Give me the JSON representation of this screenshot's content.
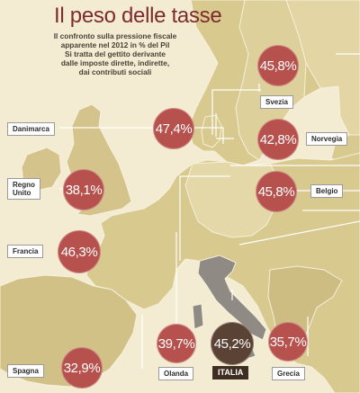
{
  "title": "Il peso delle tasse",
  "subtitle_lines": [
    "Il confronto sulla pressione fiscale",
    "apparente nel 2012 in % del Pil",
    "Si tratta del gettito derivante",
    "dalle imposte dirette, indirette,",
    "dai contributi sociali"
  ],
  "countries": {
    "svezia": {
      "label": "Svezia",
      "value": "45,8%"
    },
    "norvegia": {
      "label": "Norvegia",
      "value": "42,8%"
    },
    "danimarca": {
      "label": "Danimarca",
      "value": "47,4%"
    },
    "regno_unito": {
      "label_line1": "Regno",
      "label_line2": "Unito",
      "value": "38,1%"
    },
    "belgio": {
      "label": "Belgio",
      "value": "45,8%"
    },
    "francia": {
      "label": "Francia",
      "value": "46,3%"
    },
    "spagna": {
      "label": "Spagna",
      "value": "32,9%"
    },
    "olanda": {
      "label": "Olanda",
      "value": "39,7%"
    },
    "italia": {
      "label": "ITALIA",
      "value": "45,2%"
    },
    "grecia": {
      "label": "Grecia",
      "value": "35,7%"
    }
  },
  "colors": {
    "sea": "#f4ecd2",
    "land": "#d8c98f",
    "italy_land": "#8f8a83",
    "bubble": "#b6514d",
    "bubble_italy": "#5a4235",
    "title": "#7d2b2c",
    "leader": "#ffffff"
  }
}
